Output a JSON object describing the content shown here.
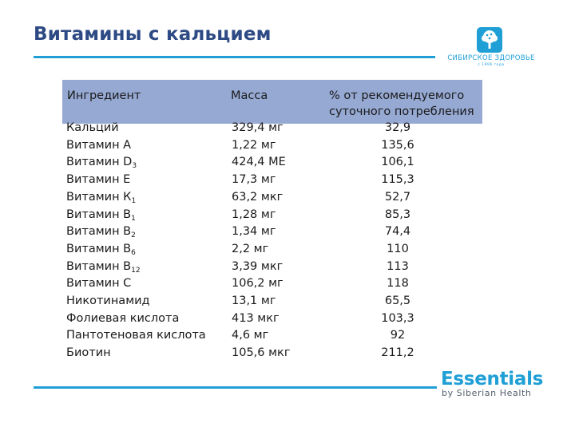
{
  "title": "Витамины с кальцием",
  "logo_top": {
    "brand": "СИБИРСКОЕ ЗДОРОВЬЕ",
    "tagline": "с 1996 года",
    "icon": "tree-icon"
  },
  "table": {
    "headers": {
      "ingredient": "Ингредиент",
      "mass": "Масса",
      "pct_line1": "% от рекомендуемого",
      "pct_line2": "суточного  потребления"
    },
    "rows": [
      {
        "name": "Кальций",
        "sub": "",
        "mass": "329,4 мг",
        "pct": "32,9"
      },
      {
        "name": "Витамин А",
        "sub": "",
        "mass": "1,22 мг",
        "pct": "135,6"
      },
      {
        "name": "Витамин D",
        "sub": "3",
        "mass": "424,4 МЕ",
        "pct": "106,1"
      },
      {
        "name": "Витамин Е",
        "sub": "",
        "mass": "17,3 мг",
        "pct": "115,3"
      },
      {
        "name": "Витамин К",
        "sub": "1",
        "mass": "63,2 мкг",
        "pct": "52,7"
      },
      {
        "name": "Витамин В",
        "sub": "1",
        "mass": "1,28 мг",
        "pct": "85,3"
      },
      {
        "name": "Витамин В",
        "sub": "2",
        "mass": "1,34 мг",
        "pct": "74,4"
      },
      {
        "name": "Витамин В",
        "sub": "6",
        "mass": "2,2 мг",
        "pct": "110"
      },
      {
        "name": "Витамин В",
        "sub": "12",
        "mass": "3,39 мкг",
        "pct": "113"
      },
      {
        "name": "Витамин С",
        "sub": "",
        "mass": "106,2 мг",
        "pct": "118"
      },
      {
        "name": "Никотинамид",
        "sub": "",
        "mass": "13,1 мг",
        "pct": "65,5"
      },
      {
        "name": "Фолиевая кислота",
        "sub": "",
        "mass": "413 мкг",
        "pct": "103,3"
      },
      {
        "name": "Пантотеновая кислота",
        "sub": "",
        "mass": "4,6 мг",
        "pct": "92"
      },
      {
        "name": "Биотин",
        "sub": "",
        "mass": "105,6 мкг",
        "pct": "211,2"
      }
    ]
  },
  "logo_bottom": {
    "word": "Essentials",
    "by": "by Siberian Health"
  },
  "colors": {
    "title": "#2d4a84",
    "accent": "#1f9fd6",
    "header_band": "#96a9d3"
  }
}
